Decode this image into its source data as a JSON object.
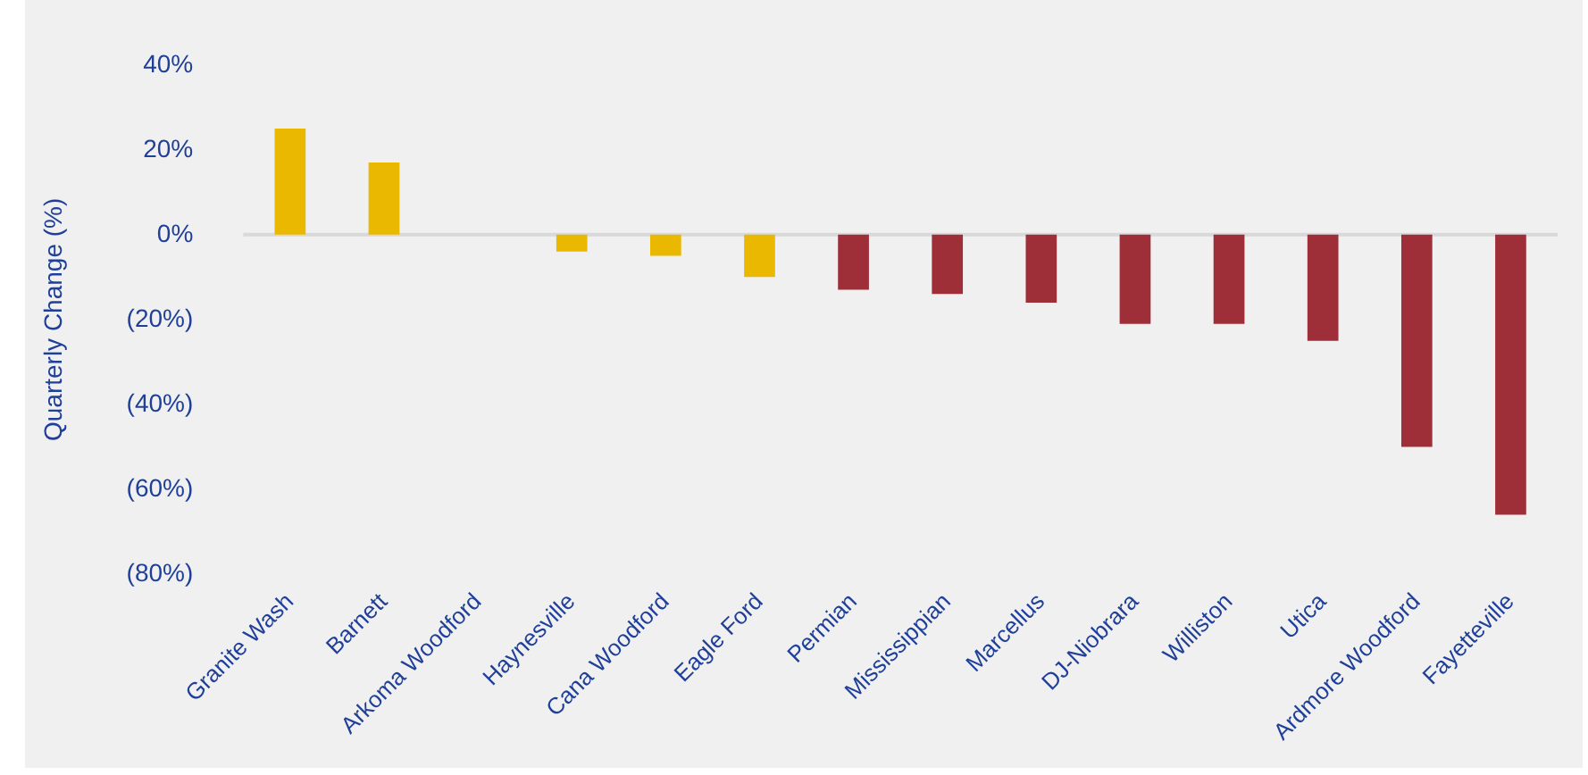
{
  "chart_data": {
    "type": "bar",
    "ylabel": "Quarterly Change (%)",
    "categories": [
      "Granite Wash",
      "Barnett",
      "Arkoma Woodford",
      "Haynesville",
      "Cana Woodford",
      "Eagle Ford",
      "Permian",
      "Mississippian",
      "Marcellus",
      "DJ-Niobrara",
      "Williston",
      "Utica",
      "Ardmore Woodford",
      "Fayetteville"
    ],
    "values": [
      25,
      17,
      0,
      -4,
      -5,
      -10,
      -13,
      -14,
      -16,
      -21,
      -21,
      -25,
      -50,
      -66
    ],
    "colors": [
      "#eab800",
      "#eab800",
      "#eab800",
      "#eab800",
      "#eab800",
      "#eab800",
      "#9e2f39",
      "#9e2f39",
      "#9e2f39",
      "#9e2f39",
      "#9e2f39",
      "#9e2f39",
      "#9e2f39",
      "#9e2f39"
    ],
    "ylim": [
      -80,
      40
    ],
    "yticks": [
      {
        "value": -80,
        "label": "(80%)"
      },
      {
        "value": -60,
        "label": "(60%)"
      },
      {
        "value": -40,
        "label": "(40%)"
      },
      {
        "value": -20,
        "label": "(20%)"
      },
      {
        "value": 0,
        "label": "0%"
      },
      {
        "value": 20,
        "label": "20%"
      },
      {
        "value": 40,
        "label": "40%"
      }
    ],
    "ref_lines": [
      {
        "axis": "y",
        "value": 0,
        "color": "#d9d9d9"
      }
    ],
    "grid": false,
    "legend": false
  }
}
